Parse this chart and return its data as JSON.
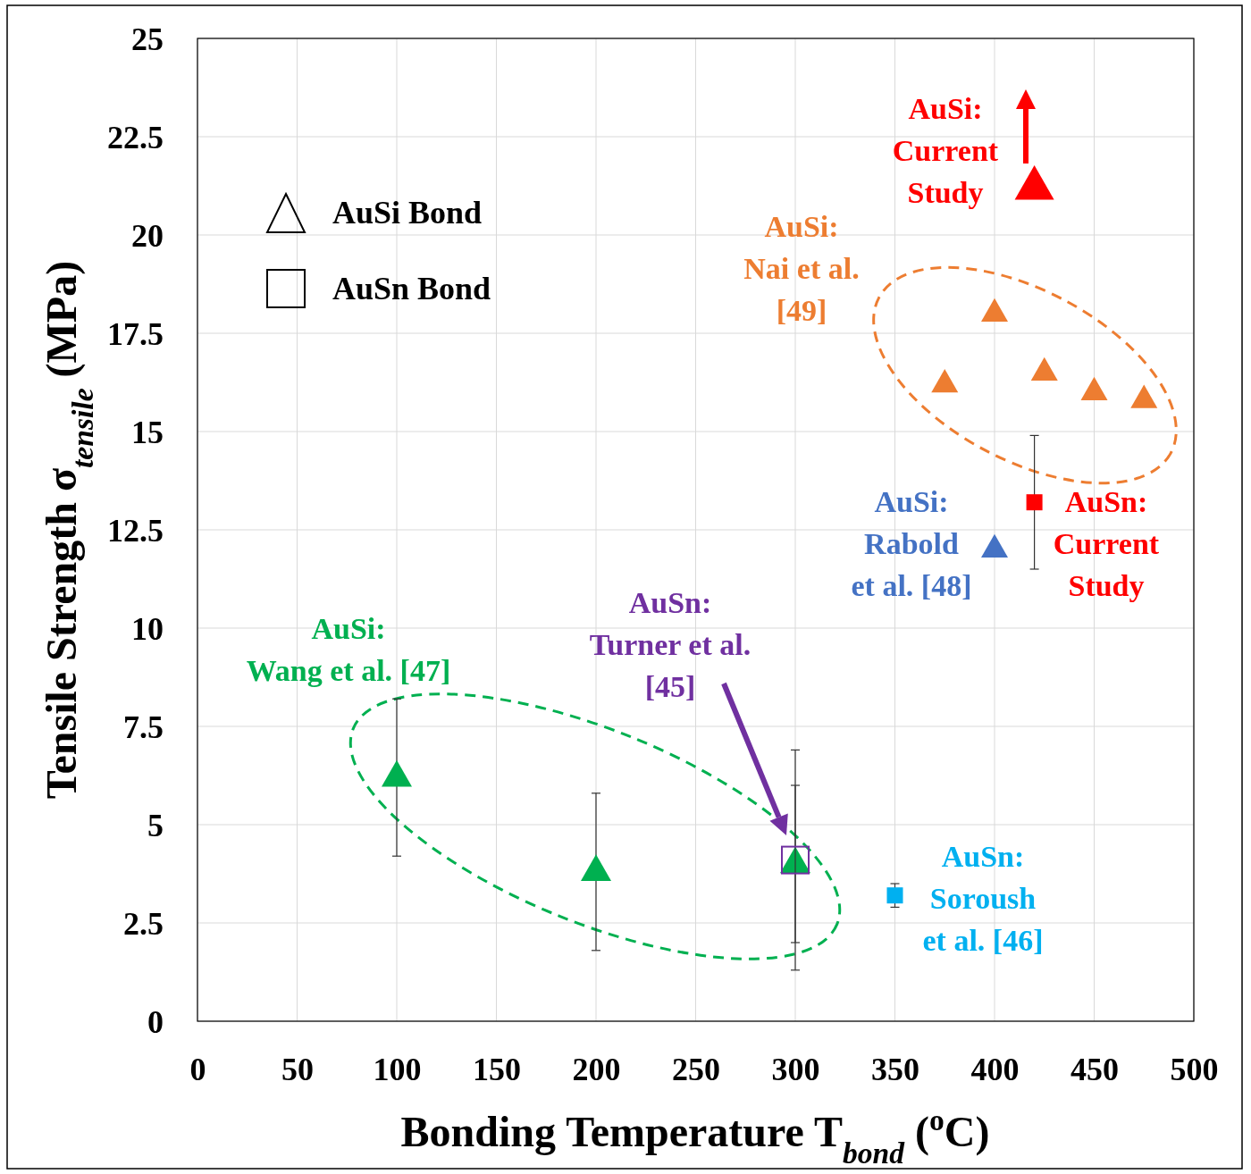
{
  "chart_data": {
    "type": "scatter",
    "xlabel": "Bonding Temperature T$_{bond}$ ($^{o}$C)",
    "ylabel": "Tensile Strength σ$_{tensile}$ (MPa)",
    "xlim": [
      0,
      500
    ],
    "xticks": [
      0,
      50,
      100,
      150,
      200,
      250,
      300,
      350,
      400,
      450,
      500
    ],
    "ylim": [
      0,
      25
    ],
    "yticks": [
      0,
      2.5,
      5,
      7.5,
      10,
      12.5,
      15,
      17.5,
      20,
      22.5,
      25
    ],
    "grid": true,
    "annotations": [
      "AuSi Bond",
      "AuSn Bond"
    ],
    "series": [
      {
        "name": "AuSi:\nWang et al. [47]",
        "color": "#00b050",
        "marker": "triangle",
        "x": [
          100,
          200,
          300
        ],
        "values": [
          6.2,
          3.8,
          4.0
        ],
        "errors": [
          2.0,
          2.0,
          2.0
        ]
      },
      {
        "name": "AuSn:\nTurner et al.\n[45]",
        "color": "#7030a0",
        "marker": "square",
        "x": [
          300
        ],
        "values": [
          4.1
        ],
        "errors": [
          2.8
        ]
      },
      {
        "name": "AuSn:\nSoroush\net al. [46]",
        "color": "#00b0f0",
        "marker": "square",
        "x": [
          350
        ],
        "values": [
          3.2
        ],
        "errors": [
          0.3
        ]
      },
      {
        "name": "AuSi:\nRabold\net al. [48]",
        "color": "#4472c4",
        "marker": "triangle",
        "x": [
          400
        ],
        "values": [
          12.0
        ]
      },
      {
        "name": "AuSi:\nNai et al.\n[49]",
        "color": "#ed7d31",
        "marker": "triangle",
        "x": [
          375,
          400,
          425,
          450,
          475
        ],
        "values": [
          16.2,
          18.0,
          16.5,
          16.0,
          15.8
        ]
      },
      {
        "name": "AuSn:\nCurrent\nStudy",
        "color": "#ff0000",
        "marker": "square",
        "x": [
          420
        ],
        "values": [
          13.2
        ],
        "errors": [
          1.7
        ]
      },
      {
        "name": "AuSi:\nCurrent\nStudy",
        "color": "#ff0000",
        "marker": "triangle",
        "x": [
          420
        ],
        "values": [
          21.2
        ]
      }
    ]
  }
}
